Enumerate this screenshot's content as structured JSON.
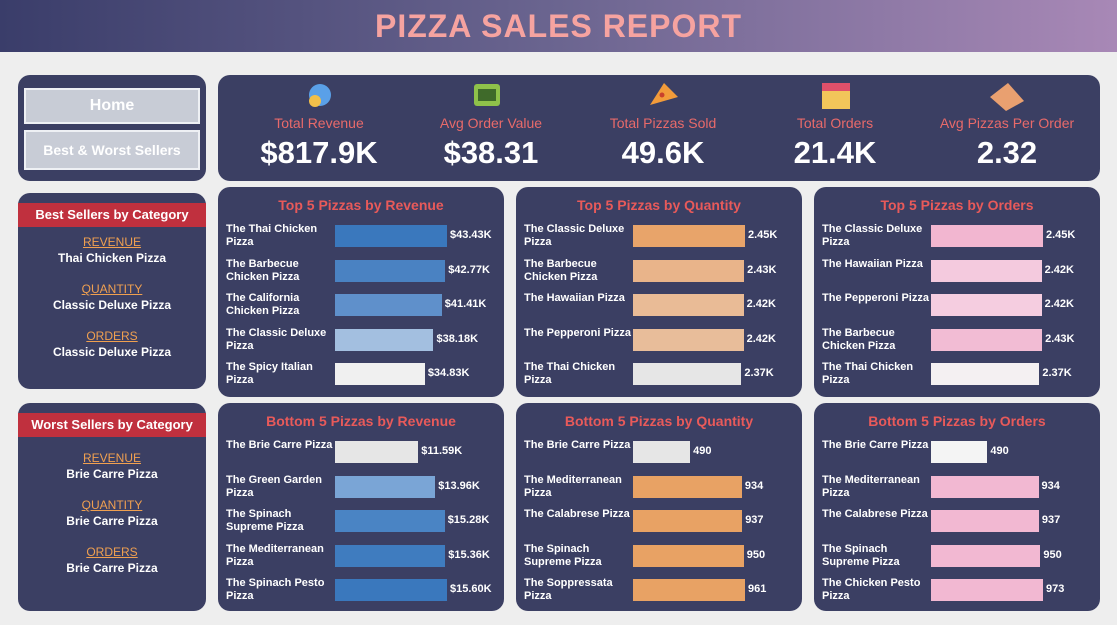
{
  "header": {
    "title": "PIZZA SALES REPORT"
  },
  "nav": {
    "buttons": [
      "Home",
      "Best & Worst Sellers"
    ]
  },
  "kpis": [
    {
      "label": "Total Revenue",
      "value": "$817.9K"
    },
    {
      "label": "Avg Order Value",
      "value": "$38.31"
    },
    {
      "label": "Total Pizzas Sold",
      "value": "49.6K"
    },
    {
      "label": "Total Orders",
      "value": "21.4K"
    },
    {
      "label": "Avg Pizzas Per Order",
      "value": "2.32"
    }
  ],
  "best_sellers": {
    "title": "Best Sellers by Category",
    "items": [
      {
        "label": "REVENUE",
        "value": "Thai Chicken Pizza"
      },
      {
        "label": "QUANTITY",
        "value": "Classic Deluxe Pizza"
      },
      {
        "label": "ORDERS",
        "value": "Classic Deluxe Pizza"
      }
    ]
  },
  "worst_sellers": {
    "title": "Worst Sellers by Category",
    "items": [
      {
        "label": "REVENUE",
        "value": "Brie Carre Pizza"
      },
      {
        "label": "QUANTITY",
        "value": "Brie Carre Pizza"
      },
      {
        "label": "ORDERS",
        "value": "Brie Carre Pizza"
      }
    ]
  },
  "chart_data": [
    {
      "type": "bar",
      "title": "Top 5 Pizzas by Revenue",
      "categories": [
        "The Thai Chicken Pizza",
        "The Barbecue Chicken Pizza",
        "The California Chicken Pizza",
        "The Classic Deluxe Pizza",
        "The Spicy Italian Pizza"
      ],
      "values": [
        43430,
        42770,
        41410,
        38180,
        34830
      ],
      "value_labels": [
        "$43.43K",
        "$42.77K",
        "$41.41K",
        "$38.18K",
        "$34.83K"
      ],
      "colors": [
        "#3a78bd",
        "#4a82c2",
        "#5f90cb",
        "#a3bfe0",
        "#f0f0f0"
      ]
    },
    {
      "type": "bar",
      "title": "Top 5 Pizzas by Quantity",
      "categories": [
        "The Classic Deluxe Pizza",
        "The Barbecue Chicken Pizza",
        "The Hawaiian Pizza",
        "The Pepperoni Pizza",
        "The Thai Chicken Pizza"
      ],
      "values": [
        2450,
        2430,
        2420,
        2420,
        2370
      ],
      "value_labels": [
        "2.45K",
        "2.43K",
        "2.42K",
        "2.42K",
        "2.37K"
      ],
      "colors": [
        "#e8a46a",
        "#e9b48a",
        "#e9bb96",
        "#e8bd9a",
        "#e6e6e6"
      ]
    },
    {
      "type": "bar",
      "title": "Top 5 Pizzas by Orders",
      "categories": [
        "The Classic Deluxe Pizza",
        "The Hawaiian Pizza",
        "The Pepperoni Pizza",
        "The Barbecue Chicken Pizza",
        "The Thai Chicken Pizza"
      ],
      "values": [
        2450,
        2420,
        2420,
        2430,
        2370
      ],
      "value_labels": [
        "2.45K",
        "2.42K",
        "2.42K",
        "2.43K",
        "2.37K"
      ],
      "colors": [
        "#f2b6d0",
        "#f4cade",
        "#f5cde0",
        "#f2bcd4",
        "#f4f0f2"
      ]
    },
    {
      "type": "bar",
      "title": "Bottom 5 Pizzas by Revenue",
      "categories": [
        "The Brie Carre Pizza",
        "The Green Garden Pizza",
        "The Spinach Supreme Pizza",
        "The Mediterranean Pizza",
        "The Spinach Pesto Pizza"
      ],
      "values": [
        11590,
        13960,
        15280,
        15360,
        15600
      ],
      "value_labels": [
        "$11.59K",
        "$13.96K",
        "$15.28K",
        "$15.36K",
        "$15.60K"
      ],
      "colors": [
        "#e6e6e6",
        "#7aa5d6",
        "#4a84c4",
        "#3f7cbf",
        "#3a78bd"
      ]
    },
    {
      "type": "bar",
      "title": "Bottom 5 Pizzas by Quantity",
      "categories": [
        "The Brie Carre Pizza",
        "The Mediterranean Pizza",
        "The Calabrese Pizza",
        "The Spinach Supreme Pizza",
        "The Soppressata Pizza"
      ],
      "values": [
        490,
        934,
        937,
        950,
        961
      ],
      "colors": [
        "#e6e6e6",
        "#e8a264",
        "#e8a264",
        "#e8a264",
        "#e8a264"
      ]
    },
    {
      "type": "bar",
      "title": "Bottom 5 Pizzas by Orders",
      "categories": [
        "The Brie Carre Pizza",
        "The Mediterranean Pizza",
        "The Calabrese Pizza",
        "The Spinach Supreme Pizza",
        "The Chicken Pesto Pizza"
      ],
      "values": [
        490,
        934,
        937,
        950,
        973
      ],
      "colors": [
        "#f4f4f4",
        "#f2b8d2",
        "#f2b8d2",
        "#f2b8d2",
        "#f2b8d2"
      ]
    }
  ]
}
